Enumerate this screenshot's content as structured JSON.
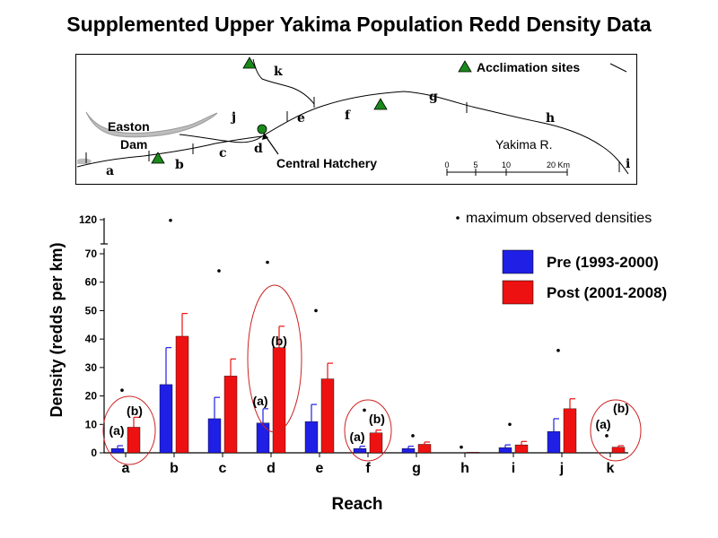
{
  "title": "Supplemented Upper Yakima Population Redd Density Data",
  "map": {
    "legend_label": "Acclimation sites",
    "dam_label_1": "Easton",
    "dam_label_2": "Dam",
    "hatchery_label": "Central Hatchery",
    "river_label": "Yakima R.",
    "scale_ticks": [
      "0",
      "5",
      "10",
      "20 Km"
    ],
    "reach_labels": [
      "a",
      "b",
      "c",
      "d",
      "e",
      "f",
      "g",
      "h",
      "i",
      "j",
      "k"
    ]
  },
  "chart_data": {
    "type": "bar",
    "ylabel": "Density (redds per km)",
    "xlabel": "Reach",
    "categories": [
      "a",
      "b",
      "c",
      "d",
      "e",
      "f",
      "g",
      "h",
      "i",
      "j",
      "k"
    ],
    "y_ticks_lower": [
      0,
      10,
      20,
      30,
      40,
      50,
      60,
      70
    ],
    "y_tick_upper": 120,
    "series": [
      {
        "name": "Pre (1993-2000)",
        "color": "#1f1fe6",
        "values": [
          1.5,
          24,
          12,
          10.5,
          11,
          1.5,
          1.5,
          0,
          1.8,
          7.5,
          0
        ],
        "errors": [
          1,
          13,
          7.5,
          5,
          6,
          0.8,
          0.8,
          0,
          1,
          4.5,
          0
        ]
      },
      {
        "name": "Post (2001-2008)",
        "color": "#ee1111",
        "values": [
          9,
          41,
          27,
          37,
          26,
          7,
          3,
          0.2,
          2.8,
          15.5,
          2
        ],
        "errors": [
          3.5,
          8,
          6,
          7.5,
          5.5,
          1,
          0.8,
          0,
          1.2,
          3.5,
          0.5
        ]
      }
    ],
    "max_observed": {
      "label": "maximum observed densities",
      "values": [
        22,
        119,
        64,
        67,
        50,
        15,
        6,
        2,
        10,
        36,
        6
      ]
    },
    "annotations": [
      {
        "reach": "a",
        "pre_label": "(a)",
        "post_label": "(b)"
      },
      {
        "reach": "d",
        "pre_label": "(a)",
        "post_label": "(b)"
      },
      {
        "reach": "f",
        "pre_label": "(a)",
        "post_label": "(b)"
      },
      {
        "reach": "k",
        "pre_label": "(a)",
        "post_label": "(b)"
      }
    ],
    "ylim": [
      0,
      120
    ],
    "grid": false,
    "legend_position": "top-right"
  }
}
